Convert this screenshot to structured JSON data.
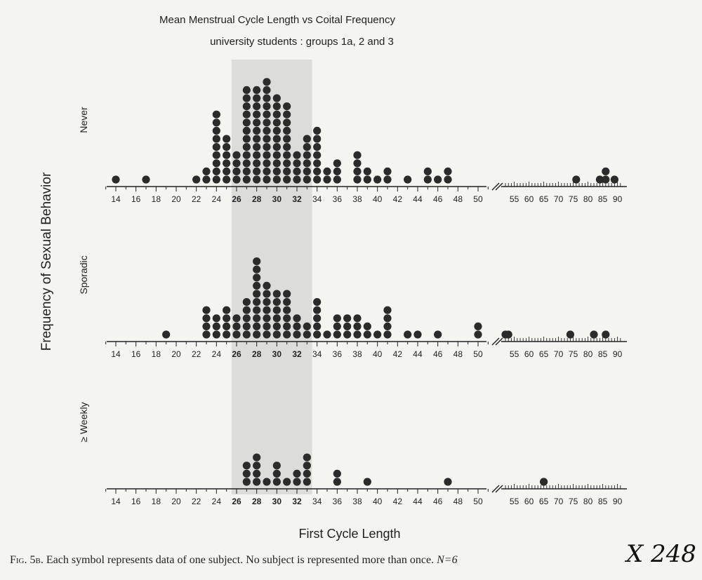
{
  "chart_data": {
    "type": "scatter",
    "title": "Mean Menstrual Cycle Length  vs   Coital Frequency",
    "subtitle": "university students :  groups 1a,  2 and 3",
    "xlabel": "First Cycle Length",
    "ylabel": "Frequency of Sexual Behavior",
    "highlight_range": [
      25.5,
      33.5
    ],
    "x_ticks_linear": [
      "14",
      "16",
      "18",
      "20",
      "22",
      "24",
      "26",
      "28",
      "30",
      "32",
      "34",
      "36",
      "38",
      "40",
      "42",
      "44",
      "46",
      "48",
      "50"
    ],
    "x_ticks_compressed": [
      "55",
      "60",
      "65",
      "70",
      "75",
      "80",
      "85",
      "90"
    ],
    "bold_ticks": [
      "26",
      "28",
      "30",
      "32"
    ],
    "series": [
      {
        "name": "Never",
        "points": [
          [
            14,
            1
          ],
          [
            17,
            1
          ],
          [
            22,
            1
          ],
          [
            23,
            2
          ],
          [
            24,
            9
          ],
          [
            25,
            6
          ],
          [
            26,
            4
          ],
          [
            27,
            12
          ],
          [
            28,
            12
          ],
          [
            29,
            13
          ],
          [
            30,
            11
          ],
          [
            31,
            10
          ],
          [
            32,
            4
          ],
          [
            33,
            6
          ],
          [
            34,
            7
          ],
          [
            35,
            2
          ],
          [
            36,
            3
          ],
          [
            38,
            4
          ],
          [
            39,
            2
          ],
          [
            40,
            1
          ],
          [
            41,
            2
          ],
          [
            43,
            1
          ],
          [
            45,
            2
          ],
          [
            46,
            1
          ],
          [
            47,
            2
          ],
          [
            76,
            1
          ],
          [
            84,
            1
          ],
          [
            86,
            2
          ],
          [
            89,
            1
          ]
        ]
      },
      {
        "name": "Sporadic",
        "points": [
          [
            19,
            1
          ],
          [
            23,
            4
          ],
          [
            24,
            3
          ],
          [
            25,
            4
          ],
          [
            26,
            3
          ],
          [
            27,
            5
          ],
          [
            28,
            10
          ],
          [
            29,
            7
          ],
          [
            30,
            6
          ],
          [
            31,
            6
          ],
          [
            32,
            3
          ],
          [
            33,
            2
          ],
          [
            34,
            5
          ],
          [
            35,
            1
          ],
          [
            36,
            3
          ],
          [
            37,
            3
          ],
          [
            38,
            3
          ],
          [
            39,
            2
          ],
          [
            40,
            1
          ],
          [
            41,
            4
          ],
          [
            43,
            1
          ],
          [
            44,
            1
          ],
          [
            46,
            1
          ],
          [
            50,
            2
          ],
          [
            52,
            1
          ],
          [
            53,
            1
          ],
          [
            74,
            1
          ],
          [
            82,
            1
          ],
          [
            86,
            1
          ]
        ]
      },
      {
        "name": "≥ Weekly",
        "points": [
          [
            27,
            3
          ],
          [
            28,
            4
          ],
          [
            29,
            1
          ],
          [
            30,
            3
          ],
          [
            31,
            1
          ],
          [
            32,
            2
          ],
          [
            33,
            4
          ],
          [
            36,
            2
          ],
          [
            39,
            1
          ],
          [
            47,
            1
          ],
          [
            65,
            1
          ]
        ]
      }
    ]
  },
  "caption": {
    "fig_label": "Fig. 5b.",
    "text": "Each symbol represents data of one subject. No subject is represented more than once.",
    "n_prefix": "N=6"
  },
  "handwritten_annotation": "X 248"
}
